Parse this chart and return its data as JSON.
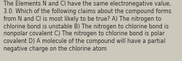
{
  "lines": [
    "The Elements N and Cl have the same electronegative value,",
    "3.0. Which of the following claims about the compound forms",
    "from N and Cl is most likely to be true? A) The nitrogen to",
    "chlorine bond is unstable B) The nitrogen to chlorine bond is",
    "nonpolar covalent C) The nitrogen to chlorine bond is polar",
    "covalent D) A molecule of the compound will have a partial",
    "negative charge on the chlorine atom"
  ],
  "background_color": "#cdc8bc",
  "text_color": "#2a2a2a",
  "font_size": 5.6,
  "fig_width": 2.61,
  "fig_height": 0.88,
  "dpi": 100
}
